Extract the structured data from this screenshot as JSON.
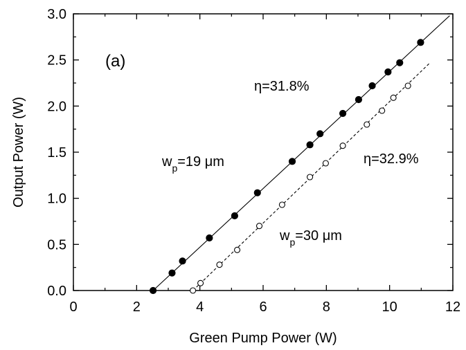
{
  "chart_data": {
    "type": "scatter",
    "panel_label": "(a)",
    "xlabel": "Green Pump Power (W)",
    "ylabel": "Output Power (W)",
    "xlim": [
      0,
      12
    ],
    "ylim": [
      0,
      3.0
    ],
    "x_ticks": [
      0,
      2,
      4,
      6,
      8,
      10,
      12
    ],
    "x_tick_labels": [
      "0",
      "2",
      "4",
      "6",
      "8",
      "10",
      "12"
    ],
    "y_ticks": [
      0,
      0.5,
      1.0,
      1.5,
      2.0,
      2.5,
      3.0
    ],
    "y_tick_labels": [
      "0.0",
      "0.5",
      "1.0",
      "1.5",
      "2.0",
      "2.5",
      "3.0"
    ],
    "grid": false,
    "series": [
      {
        "name": "wp=19 μm",
        "marker": "filled-circle",
        "x": [
          2.52,
          3.12,
          3.45,
          4.3,
          5.1,
          5.82,
          6.92,
          7.48,
          7.8,
          8.52,
          9.02,
          9.45,
          9.95,
          10.32,
          10.98
        ],
        "y": [
          0.0,
          0.19,
          0.32,
          0.57,
          0.81,
          1.06,
          1.4,
          1.58,
          1.7,
          1.92,
          2.07,
          2.22,
          2.37,
          2.47,
          2.69
        ],
        "fit": {
          "style": "solid",
          "x": [
            2.52,
            11.9
          ],
          "y": [
            0.0,
            2.98
          ]
        }
      },
      {
        "name": "wp=30 μm",
        "marker": "open-circle",
        "x": [
          3.78,
          4.02,
          4.62,
          5.18,
          5.88,
          6.6,
          7.48,
          7.98,
          8.52,
          9.28,
          9.76,
          10.12,
          10.58
        ],
        "y": [
          0.0,
          0.08,
          0.28,
          0.44,
          0.7,
          0.93,
          1.23,
          1.38,
          1.57,
          1.8,
          1.95,
          2.09,
          2.22
        ],
        "fit": {
          "style": "dashed",
          "x": [
            3.78,
            11.25
          ],
          "y": [
            0.0,
            2.46
          ]
        }
      }
    ],
    "annotations": [
      {
        "eta": "η=31.8%"
      },
      {
        "eta": "η=32.9%"
      },
      {
        "w": "w",
        "sub": "p",
        "rest": "=19 μm"
      },
      {
        "w": "w",
        "sub": "p",
        "rest": "=30 μm"
      }
    ]
  }
}
